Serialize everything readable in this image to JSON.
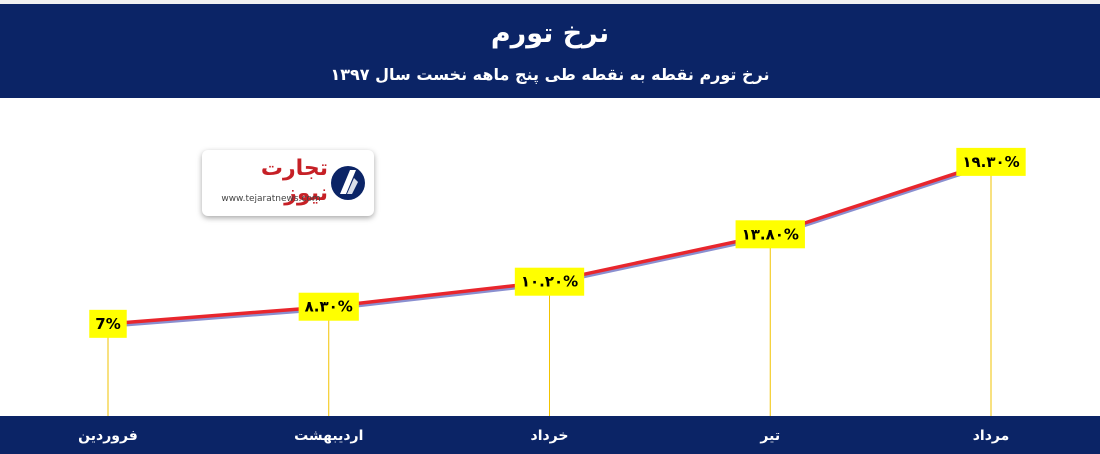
{
  "header": {
    "title": "نرخ تورم",
    "subtitle": "نرخ تورم نقطه به نقطه طی پنج ماهه نخست سال ۱۳۹۷"
  },
  "logo": {
    "name": "تجارت نیوز",
    "url": "www.tejaratnews.com"
  },
  "colors": {
    "header_bg": "#0b2466",
    "line": "#e8262d",
    "line_shadow": "#8a8fd0",
    "label_bg": "#ffff00",
    "leader": "#f2c300"
  },
  "chart_data": {
    "type": "line",
    "title": "نرخ تورم",
    "subtitle": "نرخ تورم نقطه به نقطه طی پنج ماهه نخست سال ۱۳۹۷",
    "categories": [
      "فروردین",
      "اردیبهشت",
      "خرداد",
      "تیر",
      "مرداد"
    ],
    "values": [
      7,
      8.3,
      10.2,
      13.8,
      19.3
    ],
    "data_labels": [
      "7%",
      "۸.۳۰%",
      "۱۰.۲۰%",
      "۱۳.۸۰%",
      "۱۹.۳۰%"
    ],
    "ylim": [
      0,
      24
    ],
    "grid": false,
    "legend": "none"
  }
}
